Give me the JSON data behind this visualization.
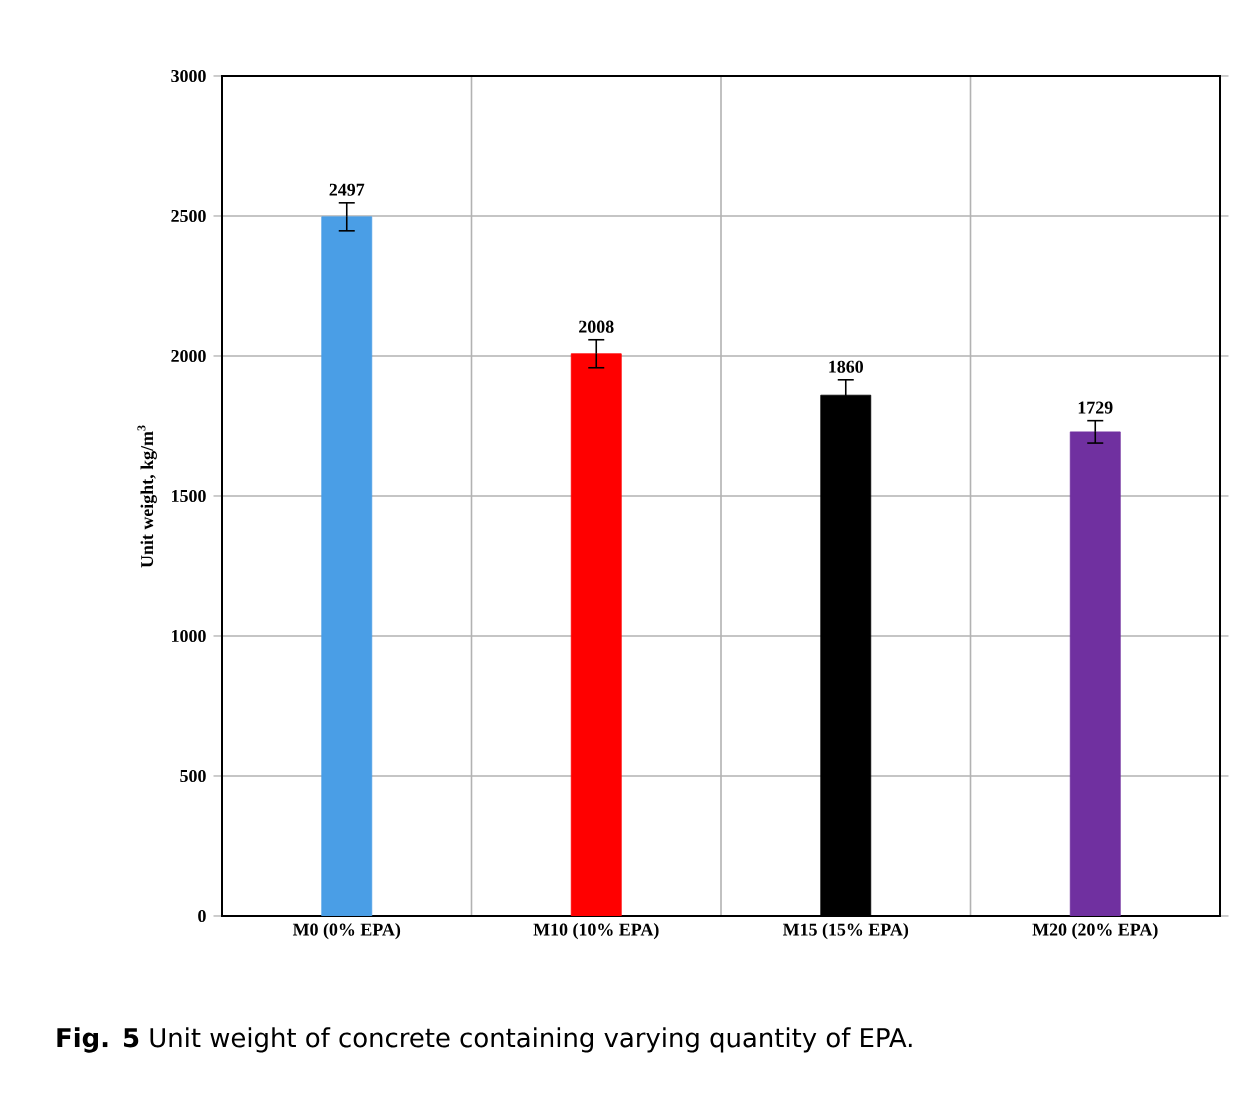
{
  "chart_data": {
    "type": "bar",
    "ylabel": "Unit weight, kg/m$^{3}$",
    "categories": [
      "M0 (0% EPA)",
      "M10 (10% EPA)",
      "M15 (15% EPA)",
      "M20 (20% EPA)"
    ],
    "values": [
      2497,
      2008,
      1860,
      1729
    ],
    "errors": [
      50,
      50,
      55,
      40
    ],
    "colors": [
      "#4a9ee6",
      "#ff0000",
      "#000000",
      "#7030a0"
    ],
    "ylim": [
      0,
      3000
    ],
    "yticks": [
      0,
      500,
      1000,
      1500,
      2000,
      2500,
      3000
    ],
    "grid": true,
    "data_labels": true,
    "annotations": [
      "**Fig. 5**  Unit weight of concrete containing varying quantity of EPA."
    ]
  }
}
